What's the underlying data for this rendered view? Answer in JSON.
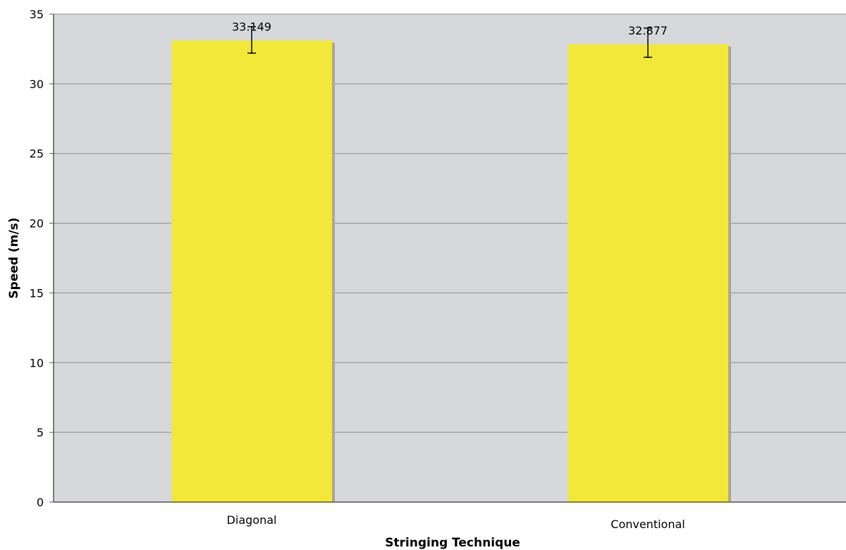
{
  "chart_data": {
    "type": "bar",
    "categories": [
      "Diagonal",
      "Conventional"
    ],
    "values": [
      33.149,
      32.877
    ],
    "error_bars": [
      {
        "low": 32.2,
        "high": 34.1
      },
      {
        "low": 31.9,
        "high": 34.0
      }
    ],
    "data_labels": [
      "33.149",
      "32.877"
    ],
    "xlabel": "Stringing Technique",
    "ylabel": "Speed (m/s)",
    "ylim": [
      0,
      35
    ],
    "yticks": [
      0,
      5,
      10,
      15,
      20,
      25,
      30,
      35
    ],
    "grid": true,
    "legend": "none"
  },
  "colors": {
    "plot_background": "#d6d8dc",
    "bar_fill": "#f2e83a",
    "bar_shadow": "#a6a6a6",
    "gridline": "#8c8c8c",
    "axis": "#555555",
    "error_bar": "#000000"
  }
}
